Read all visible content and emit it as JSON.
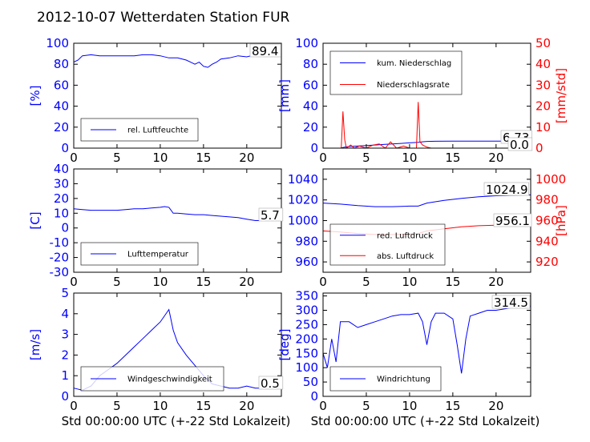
{
  "title": "2012-10-07 Wetterdaten Station FUR",
  "colors": {
    "primary": "#0000ff",
    "secondary": "#ff0000"
  },
  "chart_data": [
    {
      "type": "line",
      "ylabel": "[%]",
      "xlim": [
        0,
        24
      ],
      "ylim": [
        0,
        100
      ],
      "xticks": [
        0,
        5,
        10,
        15,
        20
      ],
      "yticks": [
        0,
        20,
        40,
        60,
        80,
        100
      ],
      "legend_position": "lower-left",
      "last_value": "89.4",
      "series": [
        {
          "name": "rel. Luftfeuchte",
          "color": "#0000ff",
          "x": [
            0,
            0.5,
            1,
            2,
            3,
            4,
            5,
            6,
            7,
            8,
            9,
            10,
            11,
            12,
            13,
            13.5,
            14,
            14.5,
            15,
            15.5,
            16,
            16.5,
            17,
            18,
            19,
            20,
            21,
            22,
            23,
            24
          ],
          "y": [
            82,
            84,
            88,
            89,
            88,
            88,
            88,
            88,
            88,
            89,
            89,
            88,
            86,
            86,
            84,
            82,
            80,
            82,
            78,
            77,
            80,
            82,
            85,
            86,
            88,
            87,
            89,
            89,
            89,
            89.4
          ]
        }
      ]
    },
    {
      "type": "line",
      "ylabel": "[mm]",
      "ylabel2": "[mm/std]",
      "xlim": [
        0,
        24
      ],
      "ylim": [
        0,
        100
      ],
      "ylim2": [
        0,
        50
      ],
      "xticks": [
        0,
        5,
        10,
        15,
        20
      ],
      "yticks": [
        0,
        20,
        40,
        60,
        80,
        100
      ],
      "yticks2": [
        0,
        10,
        20,
        30,
        40,
        50
      ],
      "legend_position": "top-left",
      "last_value": "6.73",
      "last_value2": "0.0",
      "series": [
        {
          "name": "kum. Niederschlag",
          "color": "#0000ff",
          "axis": "left",
          "x": [
            0,
            2,
            2.5,
            3,
            4,
            5,
            6,
            7,
            8,
            9,
            10,
            11,
            11.5,
            12,
            13,
            15,
            18,
            20,
            22,
            24
          ],
          "y": [
            0,
            0,
            1,
            1.5,
            2,
            2.5,
            3,
            3.5,
            4,
            4.5,
            5,
            5.5,
            6,
            6.4,
            6.6,
            6.7,
            6.7,
            6.7,
            6.73,
            6.73
          ]
        },
        {
          "name": "Niederschlagsrate",
          "color": "#ff0000",
          "axis": "right",
          "x": [
            0,
            2.1,
            2.3,
            2.5,
            2.7,
            3.2,
            3.6,
            4.2,
            5.0,
            5.8,
            6.5,
            7.2,
            7.8,
            8.5,
            9.3,
            10.0,
            10.8,
            11.0,
            11.2,
            11.5,
            12.0,
            12.5,
            13,
            24
          ],
          "y": [
            0,
            0,
            17.5,
            4,
            0,
            1.5,
            0,
            1,
            0,
            1.5,
            2,
            0,
            3,
            0,
            1,
            0,
            0,
            22,
            3,
            1.5,
            0.5,
            0,
            0,
            0
          ]
        }
      ]
    },
    {
      "type": "line",
      "ylabel": "[C]",
      "xlim": [
        0,
        24
      ],
      "ylim": [
        -30,
        40
      ],
      "xticks": [
        0,
        5,
        10,
        15,
        20
      ],
      "yticks": [
        -30,
        -20,
        -10,
        0,
        10,
        20,
        30,
        40
      ],
      "legend_position": "lower-left",
      "last_value": "5.7",
      "series": [
        {
          "name": "Lufttemperatur",
          "color": "#0000ff",
          "x": [
            0,
            1,
            2,
            3,
            4,
            5,
            6,
            7,
            8,
            9,
            10,
            10.5,
            11,
            11.5,
            12,
            13,
            14,
            15,
            16,
            17,
            18,
            19,
            20,
            21,
            22,
            23,
            24
          ],
          "y": [
            13,
            12.5,
            12,
            12,
            12,
            12,
            12.5,
            13,
            13,
            13.5,
            14,
            14.5,
            14,
            10,
            10,
            9.5,
            9,
            9,
            8.5,
            8,
            7.5,
            7,
            6,
            5,
            5,
            5.5,
            5.7
          ]
        }
      ]
    },
    {
      "type": "line",
      "ylabel2": "[hPa]",
      "xlim": [
        0,
        24
      ],
      "ylim": [
        950,
        1050
      ],
      "ylim2": [
        910,
        1010
      ],
      "xticks": [
        0,
        5,
        10,
        15,
        20
      ],
      "yticks": [
        960,
        980,
        1000,
        1020,
        1040
      ],
      "yticks2": [
        920,
        940,
        960,
        980,
        1000
      ],
      "legend_position": "lower-left",
      "last_value": "1024.9",
      "last_value2": "956.1",
      "series": [
        {
          "name": "red. Luftdruck",
          "color": "#0000ff",
          "axis": "left",
          "x": [
            0,
            2,
            4,
            6,
            8,
            10,
            11,
            12,
            14,
            16,
            18,
            20,
            22,
            24
          ],
          "y": [
            1017,
            1016,
            1014.5,
            1013.5,
            1013.5,
            1014,
            1014,
            1017,
            1019.5,
            1021.5,
            1023,
            1024,
            1024.5,
            1024.9
          ]
        },
        {
          "name": "abs. Luftdruck",
          "color": "#ff0000",
          "axis": "right",
          "x": [
            0,
            2,
            4,
            6,
            8,
            10,
            11,
            12,
            14,
            16,
            18,
            20,
            22,
            24
          ],
          "y": [
            950,
            949,
            947.5,
            946.5,
            946.5,
            947,
            947.5,
            950,
            952,
            954,
            955,
            955.5,
            956,
            956.1
          ]
        }
      ]
    },
    {
      "type": "line",
      "ylabel": "[m/s]",
      "xlabel": "Std 00:00:00 UTC (+-22 Std Lokalzeit)",
      "xlim": [
        0,
        24
      ],
      "ylim": [
        0,
        5
      ],
      "xticks": [
        0,
        5,
        10,
        15,
        20
      ],
      "yticks": [
        0,
        1,
        2,
        3,
        4,
        5
      ],
      "legend_position": "lower-center",
      "last_value": "0.5",
      "series": [
        {
          "name": "Windgeschwindigkeit",
          "color": "#0000ff",
          "x": [
            0,
            1,
            2,
            3,
            4,
            5,
            6,
            7,
            8,
            9,
            10,
            10.5,
            11,
            11.5,
            12,
            13,
            14,
            15,
            16,
            17,
            18,
            19,
            20,
            21,
            22,
            23,
            24
          ],
          "y": [
            0.4,
            0.3,
            0.5,
            1.0,
            1.3,
            1.6,
            2.0,
            2.4,
            2.8,
            3.2,
            3.6,
            3.9,
            4.2,
            3.2,
            2.6,
            2.0,
            1.5,
            1.0,
            0.6,
            0.5,
            0.4,
            0.4,
            0.5,
            0.4,
            0.4,
            0.5,
            0.5
          ]
        }
      ]
    },
    {
      "type": "line",
      "ylabel": "[deg]",
      "xlabel": "Std 00:00:00 UTC (+-22 Std Lokalzeit)",
      "xlim": [
        0,
        24
      ],
      "ylim": [
        0,
        360
      ],
      "xticks": [
        0,
        5,
        10,
        15,
        20
      ],
      "yticks": [
        0,
        50,
        100,
        150,
        200,
        250,
        300,
        350
      ],
      "legend_position": "lower-left",
      "last_value": "314.5",
      "series": [
        {
          "name": "Windrichtung",
          "color": "#0000ff",
          "x": [
            0,
            0.5,
            1,
            1.5,
            2,
            3,
            4,
            5,
            6,
            7,
            8,
            9,
            10,
            11,
            11.5,
            12,
            12.5,
            13,
            14,
            15,
            15.5,
            16,
            16.5,
            17,
            18,
            19,
            20,
            21,
            22,
            23,
            24
          ],
          "y": [
            150,
            100,
            200,
            120,
            260,
            260,
            240,
            250,
            260,
            270,
            280,
            285,
            285,
            290,
            260,
            180,
            260,
            290,
            290,
            270,
            180,
            80,
            200,
            280,
            290,
            300,
            300,
            305,
            310,
            312,
            314.5
          ]
        }
      ]
    }
  ]
}
